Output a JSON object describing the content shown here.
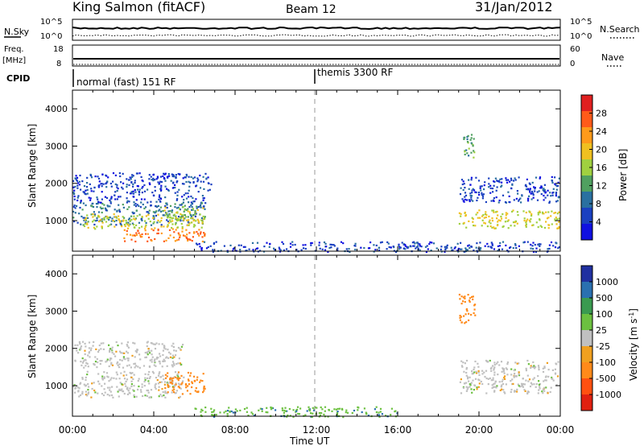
{
  "header": {
    "station": "King Salmon (fitACF)",
    "beam": "Beam 12",
    "date": "31/Jan/2012"
  },
  "top_panels": {
    "nsky_label": "N.Sky",
    "nsky_ticks": [
      "10^5",
      "10^0"
    ],
    "nsearch_label": "N.Search",
    "nsearch_ticks": [
      "10^5",
      "10^0"
    ],
    "freq_label_1": "Freq.",
    "freq_label_2": "[MHz]",
    "freq_ticks": [
      "18",
      "8"
    ],
    "nave_label": "Nave",
    "nave_ticks": [
      "60",
      "0"
    ],
    "cpid_label": "CPID",
    "cpid_segments": [
      "normal (fast) 151 RF",
      "themis 3300 RF"
    ]
  },
  "axes": {
    "xlabel": "Time UT",
    "xticks": [
      "00:00",
      "04:00",
      "08:00",
      "12:00",
      "16:00",
      "20:00",
      "00:00"
    ],
    "ylabel": "Slant Range [km]",
    "yticks": [
      "4000",
      "3000",
      "2000",
      "1000"
    ]
  },
  "power_colorbar": {
    "label": "Power [dB]",
    "ticks": [
      "28",
      "24",
      "20",
      "16",
      "12",
      "8",
      "4"
    ],
    "colors": [
      "#e02020",
      "#ff5a1a",
      "#ff9a1a",
      "#f0c020",
      "#a0d040",
      "#50a060",
      "#2a70a0",
      "#1a40c0",
      "#1010e0"
    ]
  },
  "velocity_colorbar": {
    "label": "Velocity [m s-1]",
    "label_main": "Velocity [m s",
    "label_sup": "-1",
    "label_end": "]",
    "ticks": [
      "1000",
      "500",
      "100",
      "25",
      "-25",
      "-100",
      "-500",
      "-1000"
    ],
    "colors": [
      "#2030a0",
      "#2a70b0",
      "#3a9a50",
      "#6cc040",
      "#c0c0c0",
      "#f0a020",
      "#ff8a1a",
      "#ff5010",
      "#e02010"
    ]
  },
  "chart_data": [
    {
      "type": "heatmap",
      "title": "Power",
      "x_range_hours": [
        0,
        24
      ],
      "y_range_km": [
        180,
        4500
      ],
      "colorbar_label": "Power [dB]",
      "blobs": [
        {
          "t0": 0.0,
          "t1": 6.8,
          "r0": 1500,
          "r1": 2300,
          "v": 4
        },
        {
          "t0": 0.0,
          "t1": 6.5,
          "r0": 900,
          "r1": 1500,
          "v": 8
        },
        {
          "t0": 0.5,
          "t1": 6.5,
          "r0": 800,
          "r1": 1200,
          "v": 18
        },
        {
          "t0": 2.5,
          "t1": 6.5,
          "r0": 450,
          "r1": 800,
          "v": 26
        },
        {
          "t0": 4.5,
          "t1": 6.5,
          "r0": 1000,
          "r1": 1400,
          "v": 16
        },
        {
          "t0": 19.0,
          "t1": 24.0,
          "r0": 1500,
          "r1": 2200,
          "v": 4
        },
        {
          "t0": 19.0,
          "t1": 24.0,
          "r0": 800,
          "r1": 1300,
          "v": 18
        },
        {
          "t0": 19.2,
          "t1": 19.8,
          "r0": 2700,
          "r1": 3500,
          "v": 12
        },
        {
          "t0": 6.0,
          "t1": 24.0,
          "r0": 180,
          "r1": 450,
          "v": 4
        }
      ]
    },
    {
      "type": "heatmap",
      "title": "Velocity",
      "x_range_hours": [
        0,
        24
      ],
      "y_range_km": [
        180,
        4500
      ],
      "colorbar_label": "Velocity [m s-1]",
      "blobs": [
        {
          "t0": 0.0,
          "t1": 5.5,
          "r0": 700,
          "r1": 1400,
          "v": 0
        },
        {
          "t0": 0.0,
          "t1": 5.5,
          "r0": 1500,
          "r1": 2200,
          "v": 0
        },
        {
          "t0": 4.5,
          "t1": 6.5,
          "r0": 800,
          "r1": 1400,
          "v": -300
        },
        {
          "t0": 19.0,
          "t1": 24.0,
          "r0": 800,
          "r1": 1700,
          "v": 0
        },
        {
          "t0": 19.0,
          "t1": 19.8,
          "r0": 2700,
          "r1": 3500,
          "v": -400
        },
        {
          "t0": 6.0,
          "t1": 16.0,
          "r0": 180,
          "r1": 450,
          "v": 80
        }
      ]
    }
  ]
}
